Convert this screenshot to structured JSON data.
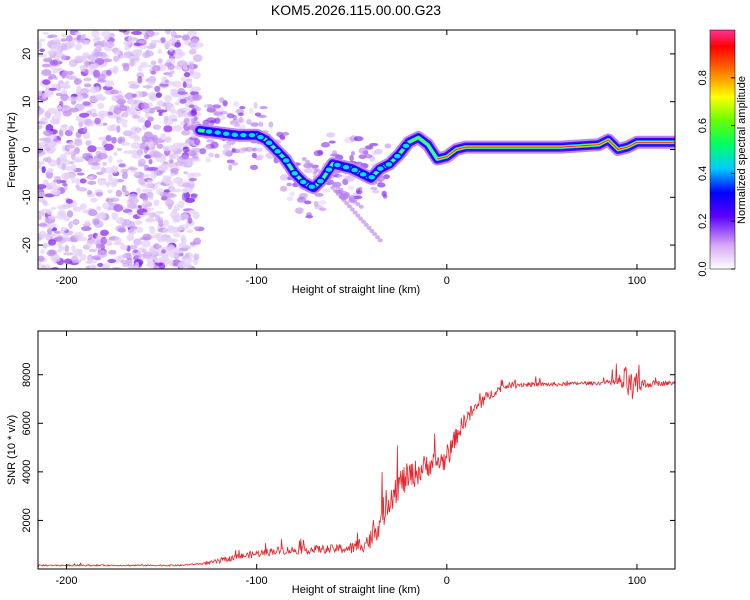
{
  "title": "KOM5.2026.115.00.00.G23",
  "chart_data": [
    {
      "type": "heatmap",
      "name": "spectrogram",
      "xlabel": "Height of straight line (km)",
      "ylabel": "Frequency (Hz)",
      "xlim": [
        -215,
        120
      ],
      "ylim": [
        -25,
        25
      ],
      "xticks": [
        -200,
        -100,
        0,
        100
      ],
      "yticks": [
        -20,
        -10,
        0,
        10,
        20
      ],
      "ridge": {
        "x": [
          -130,
          -120,
          -110,
          -100,
          -95,
          -90,
          -85,
          -80,
          -75,
          -70,
          -65,
          -60,
          -55,
          -50,
          -45,
          -40,
          -35,
          -30,
          -25,
          -20,
          -15,
          -10,
          -5,
          0,
          5,
          10,
          20,
          40,
          60,
          80,
          85,
          90,
          95,
          100,
          110,
          120
        ],
        "y": [
          4,
          3.5,
          3,
          3,
          2,
          0,
          -2,
          -5,
          -7,
          -8,
          -6,
          -3,
          -3.5,
          -4,
          -5,
          -6,
          -4,
          -3,
          -1,
          1.5,
          2.5,
          1,
          -2,
          -1.5,
          0,
          0.5,
          0.5,
          0.5,
          0.5,
          1,
          2,
          0,
          0.5,
          1.5,
          1.5,
          1.5
        ]
      },
      "colorbar": {
        "label": "Normalized spectral amplitude",
        "range": [
          0,
          1
        ],
        "ticks": [
          "0.0",
          "0.2",
          "0.4",
          "0.6",
          "0.8"
        ]
      }
    },
    {
      "type": "line",
      "name": "snr",
      "xlabel": "Height of straight line (km)",
      "ylabel": "SNR (10 * v/v)",
      "xlim": [
        -215,
        120
      ],
      "ylim": [
        0,
        9800
      ],
      "xticks": [
        -200,
        -100,
        0,
        100
      ],
      "yticks": [
        2000,
        4000,
        6000,
        8000
      ],
      "line_color": "#e8232a",
      "envelope": {
        "x": [
          -215,
          -140,
          -125,
          -110,
          -90,
          -70,
          -50,
          -40,
          -35,
          -30,
          -25,
          -20,
          -15,
          -10,
          -5,
          0,
          5,
          10,
          15,
          20,
          25,
          30,
          35,
          40,
          50,
          60,
          70,
          80,
          85,
          90,
          95,
          98,
          100,
          105,
          110,
          120
        ],
        "y": [
          150,
          150,
          250,
          500,
          750,
          800,
          850,
          1200,
          2000,
          3000,
          3500,
          3800,
          4000,
          4300,
          4400,
          4500,
          5500,
          6200,
          6600,
          7000,
          7300,
          7500,
          7600,
          7600,
          7600,
          7600,
          7650,
          7650,
          7700,
          7700,
          7700,
          7300,
          7600,
          7600,
          7650,
          7650
        ]
      },
      "noise_amplitude": {
        "x": [
          -215,
          -130,
          -120,
          -100,
          -80,
          -60,
          -50,
          -40,
          -35,
          -30,
          -20,
          -10,
          0,
          10,
          20,
          30,
          60,
          85,
          90,
          95,
          100,
          105,
          120
        ],
        "y": [
          60,
          60,
          200,
          300,
          350,
          350,
          500,
          900,
          1200,
          1400,
          1200,
          1000,
          900,
          700,
          500,
          250,
          150,
          150,
          500,
          1500,
          1000,
          300,
          150
        ]
      }
    }
  ]
}
